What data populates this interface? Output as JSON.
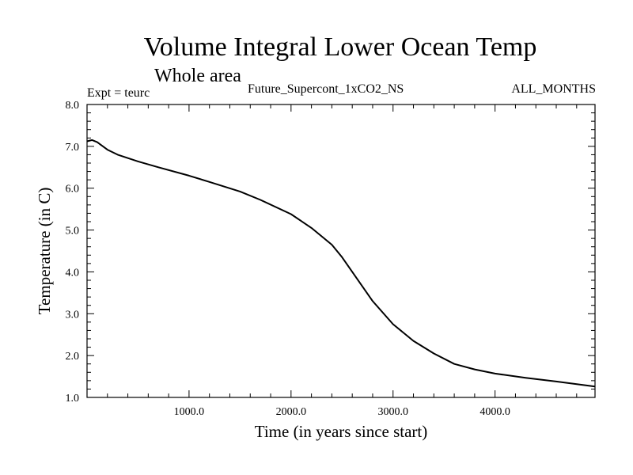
{
  "chart_data": {
    "type": "line",
    "title": "Volume Integral Lower Ocean Temp",
    "subtitle": "Whole area",
    "annotations": {
      "left": "Expt = teurc",
      "center": "Future_Supercont_1xCO2_NS",
      "right": "ALL_MONTHS"
    },
    "xlabel": "Time (in years since start)",
    "ylabel": "Temperature (in C)",
    "xlim": [
      0,
      4980
    ],
    "ylim": [
      1.0,
      8.0
    ],
    "x_ticks": [
      1000,
      2000,
      3000,
      4000
    ],
    "x_tick_labels": [
      "1000.0",
      "2000.0",
      "3000.0",
      "4000.0"
    ],
    "y_ticks": [
      1,
      2,
      3,
      4,
      5,
      6,
      7,
      8
    ],
    "y_tick_labels": [
      "1.0",
      "2.0",
      "3.0",
      "4.0",
      "5.0",
      "6.0",
      "7.0",
      "8.0"
    ],
    "grid": false,
    "series": [
      {
        "x": [
          0,
          50,
          100,
          200,
          300,
          500,
          700,
          1000,
          1200,
          1500,
          1700,
          2000,
          2200,
          2400,
          2500,
          2600,
          2700,
          2800,
          3000,
          3200,
          3400,
          3600,
          3800,
          4000,
          4300,
          4600,
          4980
        ],
        "y": [
          7.12,
          7.15,
          7.1,
          6.92,
          6.8,
          6.64,
          6.5,
          6.3,
          6.15,
          5.92,
          5.72,
          5.38,
          5.05,
          4.65,
          4.35,
          4.0,
          3.65,
          3.3,
          2.75,
          2.35,
          2.05,
          1.8,
          1.67,
          1.57,
          1.47,
          1.38,
          1.26
        ],
        "color": "#000000"
      }
    ]
  }
}
